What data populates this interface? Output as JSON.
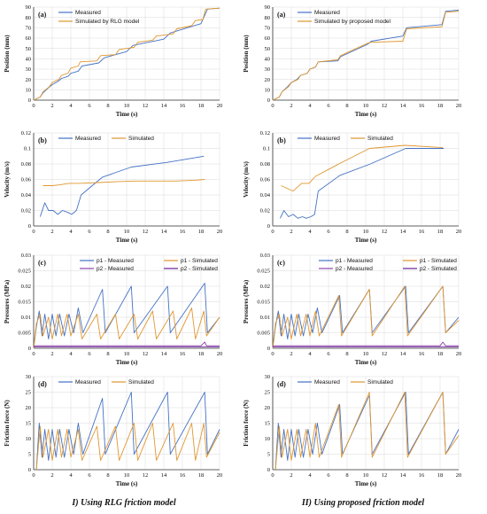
{
  "columns": [
    {
      "caption": "I) Using RLG friction model"
    },
    {
      "caption": "II) Using proposed friction model"
    }
  ],
  "colors": {
    "measured": "#4472C4",
    "simulated": "#E0962F",
    "p2_measured": "#8E44AD",
    "p2_simulated": "#6A1B9A",
    "grid": "#D9D9D9"
  },
  "chart_data": [
    {
      "id": "I-a",
      "type": "line",
      "panel_label": "(a)",
      "xlabel": "Time (s)",
      "ylabel": "Position (mm)",
      "xlim": [
        0,
        20
      ],
      "ylim": [
        0,
        90
      ],
      "xticks": [
        0,
        2,
        4,
        6,
        8,
        10,
        12,
        14,
        16,
        18,
        20
      ],
      "yticks": [
        0,
        10,
        20,
        30,
        40,
        50,
        60,
        70,
        80,
        90
      ],
      "grid": true,
      "legend": "top-left",
      "series": [
        {
          "name": "Measured",
          "x": [
            0,
            0.7,
            1,
            1.6,
            2,
            2.6,
            3,
            3.7,
            4,
            4.8,
            5.2,
            7,
            7.6,
            10,
            10.7,
            14,
            14.7,
            18,
            18.7,
            20
          ],
          "values": [
            0,
            3,
            7,
            12,
            15,
            18,
            21,
            23,
            26,
            28,
            33,
            36,
            41,
            47,
            53,
            59,
            65,
            74,
            88,
            89
          ]
        },
        {
          "name": "Simulated by RLG model",
          "x": [
            0,
            0.7,
            1,
            1.7,
            2,
            2.7,
            3,
            3.7,
            4,
            4.8,
            5,
            6.8,
            7.2,
            8.8,
            9.2,
            10.8,
            11.2,
            12.8,
            13.2,
            15,
            15.4,
            17,
            17.4,
            18.2,
            18.5,
            20
          ],
          "values": [
            0,
            3,
            8,
            13,
            17,
            20,
            24,
            26,
            31,
            33,
            37,
            38,
            43,
            44,
            49,
            51,
            56,
            58,
            62,
            64,
            69,
            72,
            77,
            78,
            88,
            89
          ]
        }
      ]
    },
    {
      "id": "II-a",
      "type": "line",
      "panel_label": "(a)",
      "xlabel": "Time (s)",
      "ylabel": "Position (mm)",
      "xlim": [
        0,
        20
      ],
      "ylim": [
        0,
        90
      ],
      "xticks": [
        0,
        2,
        4,
        6,
        8,
        10,
        12,
        14,
        16,
        18,
        20
      ],
      "yticks": [
        0,
        10,
        20,
        30,
        40,
        50,
        60,
        70,
        80,
        90
      ],
      "grid": true,
      "legend": "top-left",
      "series": [
        {
          "name": "Measured",
          "x": [
            0,
            0.7,
            1,
            1.6,
            2,
            2.6,
            3,
            3.7,
            4,
            4.6,
            4.9,
            7,
            7.3,
            10.2,
            10.6,
            14,
            14.4,
            18.2,
            18.6,
            20
          ],
          "values": [
            0,
            3,
            8,
            13,
            17,
            20,
            24,
            26,
            30,
            32,
            37,
            38,
            42,
            54,
            57,
            62,
            70,
            73,
            86,
            87
          ]
        },
        {
          "name": "Simulated by proposed model",
          "x": [
            0,
            0.7,
            1,
            1.7,
            2,
            2.7,
            3,
            3.7,
            4,
            4.6,
            4.9,
            7,
            7.3,
            10.2,
            10.6,
            14,
            14.4,
            18.2,
            18.6,
            20
          ],
          "values": [
            0,
            3,
            8,
            13,
            17,
            20,
            24,
            26,
            30,
            32,
            37,
            39,
            43,
            55,
            56,
            57,
            69,
            71,
            85,
            86
          ]
        }
      ]
    },
    {
      "id": "I-b",
      "type": "line",
      "panel_label": "(b)",
      "xlabel": "Time (s)",
      "ylabel": "Velocity (m/s)",
      "xlim": [
        0,
        20
      ],
      "ylim": [
        0,
        0.12
      ],
      "xticks": [
        0,
        2,
        4,
        6,
        8,
        10,
        12,
        14,
        16,
        18,
        20
      ],
      "yticks": [
        0,
        0.02,
        0.04,
        0.06,
        0.08,
        0.1,
        0.12
      ],
      "grid": true,
      "legend": "top-left",
      "series": [
        {
          "name": "Measured",
          "x": [
            0.7,
            1.2,
            1.6,
            2.1,
            2.6,
            3.1,
            3.6,
            4.1,
            4.6,
            5.1,
            7.4,
            10.5,
            14.3,
            18.3
          ],
          "values": [
            0.012,
            0.03,
            0.02,
            0.02,
            0.015,
            0.02,
            0.018,
            0.015,
            0.02,
            0.04,
            0.063,
            0.076,
            0.082,
            0.09
          ]
        },
        {
          "name": "Simulated",
          "x": [
            1,
            2,
            2.8,
            3.8,
            4.9,
            7,
            8.8,
            10.8,
            13,
            15.2,
            17.3,
            18.4
          ],
          "values": [
            0.052,
            0.052,
            0.053,
            0.055,
            0.055,
            0.056,
            0.057,
            0.058,
            0.058,
            0.058,
            0.059,
            0.06
          ]
        }
      ]
    },
    {
      "id": "II-b",
      "type": "line",
      "panel_label": "(b)",
      "xlabel": "Time (s)",
      "ylabel": "Velocity (m/s)",
      "xlim": [
        0,
        20
      ],
      "ylim": [
        0,
        0.12
      ],
      "xticks": [
        0,
        2,
        4,
        6,
        8,
        10,
        12,
        14,
        16,
        18,
        20
      ],
      "yticks": [
        0,
        0.02,
        0.04,
        0.06,
        0.08,
        0.1,
        0.12
      ],
      "grid": true,
      "legend": "top-left",
      "series": [
        {
          "name": "Measured",
          "x": [
            0.8,
            1.2,
            1.7,
            2.2,
            2.7,
            3.2,
            3.6,
            4.1,
            4.5,
            4.9,
            7.2,
            10.5,
            14.3,
            18.4
          ],
          "values": [
            0.01,
            0.02,
            0.012,
            0.015,
            0.01,
            0.012,
            0.01,
            0.012,
            0.015,
            0.045,
            0.065,
            0.08,
            0.1,
            0.1
          ]
        },
        {
          "name": "Simulated",
          "x": [
            0.9,
            2.2,
            3.1,
            3.9,
            4.6,
            7.1,
            10.4,
            14.2,
            18.3
          ],
          "values": [
            0.052,
            0.045,
            0.055,
            0.055,
            0.064,
            0.08,
            0.1,
            0.104,
            0.101
          ]
        }
      ]
    },
    {
      "id": "I-c",
      "type": "line",
      "panel_label": "(c)",
      "xlabel": "Time (s)",
      "ylabel": "Pressures (MPa)",
      "xlim": [
        0,
        20
      ],
      "ylim": [
        0,
        0.03
      ],
      "xticks": [
        0,
        2,
        4,
        6,
        8,
        10,
        12,
        14,
        16,
        18,
        20
      ],
      "yticks": [
        0,
        0.005,
        0.01,
        0.015,
        0.02,
        0.025,
        0.03
      ],
      "grid": true,
      "legend": "top",
      "series": [
        {
          "name": "p1 - Measured",
          "x": [
            0,
            0.3,
            0.6,
            0.9,
            1.2,
            1.6,
            2,
            2.4,
            2.8,
            3.3,
            3.8,
            4.3,
            4.8,
            5.3,
            7.4,
            7.7,
            10.5,
            10.8,
            14.4,
            14.7,
            18.4,
            18.7,
            20
          ],
          "values": [
            0,
            0.007,
            0.012,
            0.004,
            0.011,
            0.003,
            0.011,
            0.004,
            0.011,
            0.004,
            0.011,
            0.005,
            0.013,
            0.005,
            0.019,
            0.005,
            0.02,
            0.005,
            0.02,
            0.005,
            0.021,
            0.005,
            0.01
          ]
        },
        {
          "name": "p1 - Simulated",
          "x": [
            0,
            0.3,
            0.7,
            1,
            1.6,
            2,
            2.6,
            3,
            3.6,
            4,
            4.8,
            5.2,
            6.8,
            7.2,
            8.8,
            9.2,
            10.8,
            11.2,
            12.8,
            13.2,
            15,
            15.4,
            17,
            17.4,
            18.3,
            18.6,
            20
          ],
          "values": [
            0,
            0.008,
            0.011,
            0.004,
            0.01,
            0.003,
            0.011,
            0.004,
            0.011,
            0.004,
            0.011,
            0.003,
            0.011,
            0.003,
            0.011,
            0.003,
            0.011,
            0.003,
            0.012,
            0.003,
            0.012,
            0.003,
            0.013,
            0.003,
            0.012,
            0.004,
            0.01
          ]
        },
        {
          "name": "p2 - Measured",
          "x": [
            0,
            2,
            4,
            6,
            8,
            10,
            12,
            14,
            16,
            18,
            18.4,
            18.6,
            20
          ],
          "values": [
            0.0008,
            0.0008,
            0.0008,
            0.0008,
            0.0008,
            0.0008,
            0.0008,
            0.0008,
            0.0008,
            0.0008,
            0.002,
            0.0008,
            0.0008
          ]
        },
        {
          "name": "p2 - Simulated",
          "x": [
            0,
            20
          ],
          "values": [
            0.0005,
            0.0005
          ]
        }
      ]
    },
    {
      "id": "II-c",
      "type": "line",
      "panel_label": "(c)",
      "xlabel": "Time (s)",
      "ylabel": "Pressures (MPa)",
      "xlim": [
        0,
        20
      ],
      "ylim": [
        0,
        0.03
      ],
      "xticks": [
        0,
        2,
        4,
        6,
        8,
        10,
        12,
        14,
        16,
        18,
        20
      ],
      "yticks": [
        0,
        0.005,
        0.01,
        0.015,
        0.02,
        0.025,
        0.03
      ],
      "grid": true,
      "legend": "top",
      "series": [
        {
          "name": "p1 - Measured",
          "x": [
            0,
            0.3,
            0.6,
            0.9,
            1.2,
            1.6,
            2,
            2.4,
            2.8,
            3.3,
            3.8,
            4.3,
            4.8,
            5.3,
            7.2,
            7.5,
            10.4,
            10.7,
            14.3,
            14.6,
            18.3,
            18.6,
            20
          ],
          "values": [
            0,
            0.007,
            0.012,
            0.004,
            0.011,
            0.003,
            0.011,
            0.004,
            0.011,
            0.004,
            0.011,
            0.005,
            0.013,
            0.005,
            0.017,
            0.005,
            0.019,
            0.005,
            0.02,
            0.005,
            0.02,
            0.005,
            0.01
          ]
        },
        {
          "name": "p1 - Simulated",
          "x": [
            0,
            0.3,
            0.7,
            1,
            1.6,
            2,
            2.6,
            3,
            3.6,
            4,
            4.6,
            5,
            7.1,
            7.4,
            10.4,
            10.7,
            14.2,
            14.5,
            18.3,
            18.6,
            20
          ],
          "values": [
            0,
            0.008,
            0.011,
            0.004,
            0.01,
            0.003,
            0.011,
            0.004,
            0.011,
            0.004,
            0.012,
            0.004,
            0.017,
            0.004,
            0.019,
            0.004,
            0.02,
            0.004,
            0.02,
            0.005,
            0.009
          ]
        },
        {
          "name": "p2 - Measured",
          "x": [
            0,
            2,
            4,
            6,
            8,
            10,
            12,
            14,
            16,
            18,
            18.3,
            18.6,
            20
          ],
          "values": [
            0.0008,
            0.0008,
            0.0008,
            0.0008,
            0.0008,
            0.0008,
            0.0008,
            0.0008,
            0.0008,
            0.0008,
            0.002,
            0.0008,
            0.0008
          ]
        },
        {
          "name": "p2 - Simulated",
          "x": [
            0,
            20
          ],
          "values": [
            0.0005,
            0.0005
          ]
        }
      ]
    },
    {
      "id": "I-d",
      "type": "line",
      "panel_label": "(d)",
      "xlabel": "Time (s)",
      "ylabel": "Friction force (N)",
      "xlim": [
        0,
        20
      ],
      "ylim": [
        0,
        30
      ],
      "xticks": [
        0,
        2,
        4,
        6,
        8,
        10,
        12,
        14,
        16,
        18,
        20
      ],
      "yticks": [
        0,
        5,
        10,
        15,
        20,
        25,
        30
      ],
      "grid": true,
      "legend": "top-left",
      "series": [
        {
          "name": "Measured",
          "x": [
            0.3,
            0.6,
            0.9,
            1.2,
            1.6,
            2,
            2.4,
            2.8,
            3.3,
            3.8,
            4.3,
            4.8,
            5.3,
            7.4,
            7.7,
            10.5,
            10.8,
            14.4,
            14.7,
            18.4,
            18.7,
            20
          ],
          "values": [
            0,
            15,
            4,
            13,
            3,
            13,
            4,
            13,
            4,
            13,
            5,
            15,
            5,
            23,
            5,
            25,
            5,
            25,
            5,
            25,
            5,
            13
          ]
        },
        {
          "name": "Simulated",
          "x": [
            0.3,
            0.7,
            1,
            1.6,
            2,
            2.6,
            3,
            3.6,
            4,
            4.8,
            5.2,
            6.8,
            7.2,
            8.8,
            9.2,
            10.8,
            11.2,
            12.8,
            13.2,
            15,
            15.4,
            17,
            17.4,
            18.3,
            18.6,
            20
          ],
          "values": [
            0,
            14,
            4,
            13,
            3,
            13,
            4,
            13,
            4,
            13,
            3,
            14,
            3,
            14,
            3,
            15,
            3,
            15,
            3,
            15,
            3,
            15,
            3,
            15,
            4,
            12
          ]
        }
      ]
    },
    {
      "id": "II-d",
      "type": "line",
      "panel_label": "(d)",
      "xlabel": "Time (s)",
      "ylabel": "Friction force (N)",
      "xlim": [
        0,
        20
      ],
      "ylim": [
        0,
        30
      ],
      "xticks": [
        0,
        2,
        4,
        6,
        8,
        10,
        12,
        14,
        16,
        18,
        20
      ],
      "yticks": [
        0,
        5,
        10,
        15,
        20,
        25,
        30
      ],
      "grid": true,
      "legend": "top-left",
      "series": [
        {
          "name": "Measured",
          "x": [
            0.3,
            0.6,
            0.9,
            1.2,
            1.6,
            2,
            2.4,
            2.8,
            3.3,
            3.8,
            4.3,
            4.8,
            5.3,
            7.2,
            7.5,
            10.4,
            10.7,
            14.3,
            14.6,
            18.3,
            18.6,
            20
          ],
          "values": [
            0,
            15,
            4,
            13,
            3,
            13,
            4,
            13,
            4,
            13,
            5,
            15,
            5,
            21,
            5,
            24,
            5,
            25,
            5,
            25,
            5,
            13
          ]
        },
        {
          "name": "Simulated",
          "x": [
            0.3,
            0.7,
            1,
            1.6,
            2,
            2.6,
            3,
            3.6,
            4,
            4.6,
            5,
            7.1,
            7.4,
            10.4,
            10.7,
            14.2,
            14.5,
            18.3,
            18.6,
            20
          ],
          "values": [
            0,
            14,
            4,
            13,
            3,
            13,
            4,
            13,
            4,
            15,
            4,
            21,
            4,
            25,
            4,
            25,
            4,
            25,
            5,
            11
          ]
        }
      ]
    }
  ]
}
